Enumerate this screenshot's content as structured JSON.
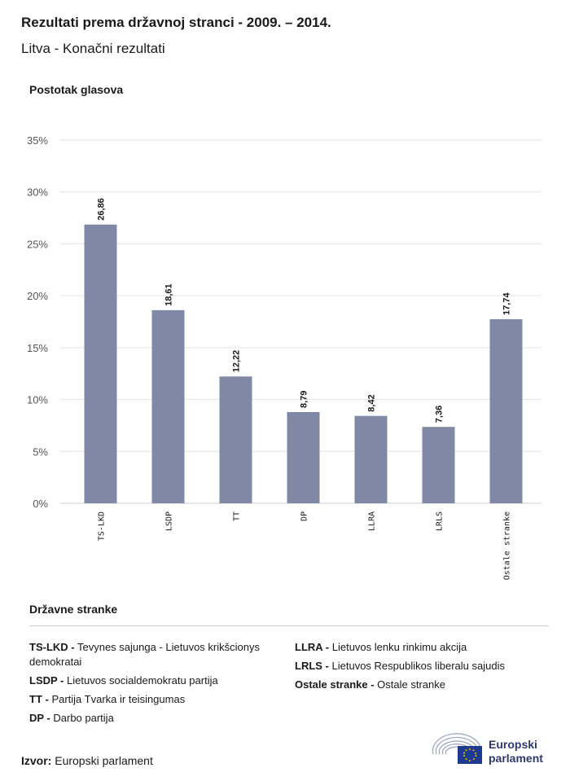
{
  "title": "Rezultati prema državnoj stranci - 2009. – 2014.",
  "subtitle": "Litva - Konačni rezultati",
  "colors": {
    "bar": "#7f89a6",
    "grid": "#e3e3e3",
    "axis": "#cccccc",
    "text": "#1a1a1a",
    "brand": "#2e3a6e",
    "flag": "#1f3b8f",
    "stars": "#f2c500"
  },
  "chart_data": {
    "type": "bar",
    "ylabel": "Postotak glasova",
    "categories": [
      "TS-LKD",
      "LSDP",
      "TT",
      "DP",
      "LLRA",
      "LRLS",
      "Ostale stranke"
    ],
    "values": [
      26.86,
      18.61,
      12.22,
      8.79,
      8.42,
      7.36,
      17.74
    ],
    "data_labels": [
      "26,86",
      "18,61",
      "12,22",
      "8,79",
      "8,42",
      "7,36",
      "17,74"
    ],
    "ylim": [
      0,
      35
    ],
    "yticks": [
      0,
      5,
      10,
      15,
      20,
      25,
      30,
      35
    ],
    "ytick_labels": [
      "0%",
      "5%",
      "10%",
      "15%",
      "20%",
      "25%",
      "30%",
      "35%"
    ],
    "grid": true
  },
  "legend": {
    "title": "Državne stranke",
    "left": [
      {
        "abbr": "TS-LKD -",
        "name": "Tevynes sajunga - Lietuvos krikšcionys demokratai"
      },
      {
        "abbr": "LSDP -",
        "name": "Lietuvos socialdemokratu partija"
      },
      {
        "abbr": "TT -",
        "name": "Partija Tvarka ir teisingumas"
      },
      {
        "abbr": "DP -",
        "name": "Darbo partija"
      }
    ],
    "right": [
      {
        "abbr": "LLRA -",
        "name": "Lietuvos lenku rinkimu akcija"
      },
      {
        "abbr": "LRLS -",
        "name": "Lietuvos Respublikos liberalu sajudis"
      },
      {
        "abbr": "Ostale stranke -",
        "name": "Ostale stranke"
      }
    ]
  },
  "source": {
    "label": "Izvor:",
    "value": "Europski parlament"
  },
  "logo": {
    "line1": "Europski",
    "line2": "parlament",
    "icon": "european-parliament-logo-icon"
  }
}
